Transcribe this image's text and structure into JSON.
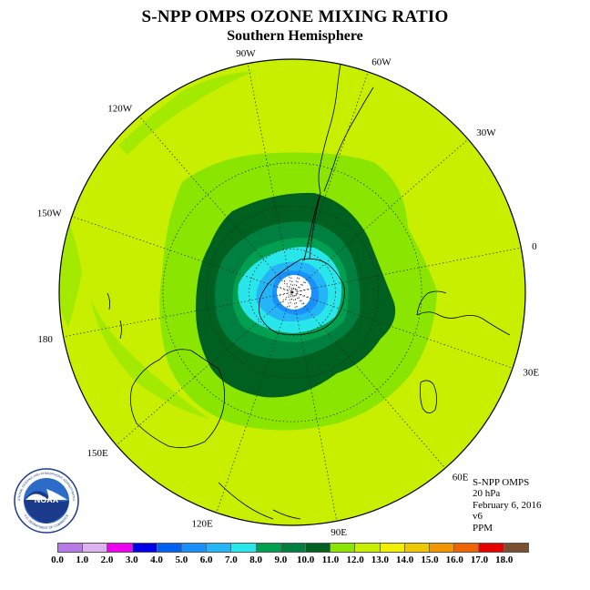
{
  "header": {
    "title": "S-NPP OMPS OZONE MIXING RATIO",
    "subtitle": "Southern Hemisphere"
  },
  "map": {
    "longitude_labels": [
      {
        "text": "0",
        "lon": 0
      },
      {
        "text": "30W",
        "lon": -30
      },
      {
        "text": "60W",
        "lon": -60
      },
      {
        "text": "90W",
        "lon": -90
      },
      {
        "text": "120W",
        "lon": -120
      },
      {
        "text": "150W",
        "lon": -150
      },
      {
        "text": "180",
        "lon": 180
      },
      {
        "text": "150E",
        "lon": 150
      },
      {
        "text": "120E",
        "lon": 120
      },
      {
        "text": "90E",
        "lon": 90
      },
      {
        "text": "60E",
        "lon": 60
      },
      {
        "text": "30E",
        "lon": 30
      }
    ],
    "ocean_color": "#c8ee00",
    "coast_color": "#000000"
  },
  "info": {
    "instrument": "S-NPP OMPS",
    "level": "20 hPa",
    "date": "February 6, 2016",
    "version": "v6",
    "units": "PPM"
  },
  "logo": {
    "text": "NOAA",
    "ring_text": "NATIONAL OCEANIC AND ATMOSPHERIC ADMINISTRATION",
    "ring_text_bottom": "U.S. DEPARTMENT OF COMMERCE"
  },
  "colorbar": {
    "labels": [
      "0.0",
      "1.0",
      "2.0",
      "3.0",
      "4.0",
      "5.0",
      "6.0",
      "7.0",
      "8.0",
      "9.0",
      "10.0",
      "11.0",
      "12.0",
      "13.0",
      "14.0",
      "15.0",
      "16.0",
      "17.0",
      "18.0"
    ],
    "colors": [
      "#b57ae6",
      "#dcb2f0",
      "#f000f0",
      "#0000e6",
      "#0060f0",
      "#1a90f8",
      "#24b4f8",
      "#28e6ea",
      "#00a050",
      "#008040",
      "#006020",
      "#8ae600",
      "#c8ee00",
      "#f0f000",
      "#f0c800",
      "#f09600",
      "#f06400",
      "#e60000",
      "#7a5030"
    ]
  }
}
